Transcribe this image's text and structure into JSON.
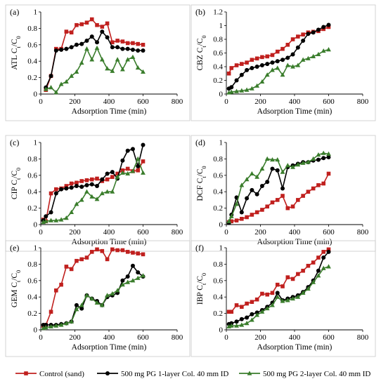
{
  "figure": {
    "legend": [
      {
        "label": "Control (sand)"
      },
      {
        "label": "500 mg PG 1-layer Col. 40 mm ID"
      },
      {
        "label": "500 mg PG 2-layer Col. 40 mm ID"
      }
    ]
  },
  "chart_data": [
    {
      "type": "line",
      "panel_label": "(a)",
      "ylabel": "ATL C/C",
      "xlabel": "Adsorption Time (min)",
      "xlim": [
        0,
        800
      ],
      "ylim": [
        0,
        1
      ],
      "xticks": [
        "0",
        "200",
        "400",
        "600",
        "800"
      ],
      "yticks": [
        "0",
        "0.2",
        "0.4",
        "0.6",
        "0.8",
        "1"
      ],
      "series": [
        {
          "name": "Control (sand)",
          "color": "#c0201e",
          "marker": "square",
          "x": [
            30,
            60,
            90,
            120,
            150,
            180,
            210,
            240,
            270,
            300,
            330,
            360,
            390,
            420,
            450,
            480,
            510,
            540,
            570,
            600
          ],
          "y": [
            0.05,
            0.22,
            0.55,
            0.55,
            0.76,
            0.75,
            0.84,
            0.85,
            0.87,
            0.91,
            0.84,
            0.82,
            0.86,
            0.63,
            0.65,
            0.64,
            0.62,
            0.62,
            0.61,
            0.6
          ]
        },
        {
          "name": "500 mg PG 1-layer Col. 40 mm ID",
          "color": "#000000",
          "marker": "circle",
          "x": [
            30,
            60,
            90,
            120,
            150,
            180,
            210,
            240,
            270,
            300,
            330,
            360,
            390,
            420,
            450,
            480,
            510,
            540,
            570,
            600
          ],
          "y": [
            0.08,
            0.22,
            0.53,
            0.54,
            0.55,
            0.57,
            0.6,
            0.61,
            0.65,
            0.7,
            0.63,
            0.76,
            0.69,
            0.57,
            0.57,
            0.55,
            0.55,
            0.54,
            0.53,
            0.53
          ]
        },
        {
          "name": "500 mg PG 2-layer Col. 40 mm ID",
          "color": "#3a7d2c",
          "marker": "triangle",
          "x": [
            30,
            60,
            90,
            120,
            150,
            180,
            210,
            240,
            270,
            300,
            330,
            360,
            390,
            420,
            450,
            480,
            510,
            540,
            570,
            600
          ],
          "y": [
            0.06,
            0.08,
            0.02,
            0.12,
            0.15,
            0.22,
            0.27,
            0.38,
            0.55,
            0.42,
            0.56,
            0.42,
            0.31,
            0.28,
            0.42,
            0.3,
            0.42,
            0.45,
            0.32,
            0.27
          ]
        }
      ]
    },
    {
      "type": "line",
      "panel_label": "(b)",
      "ylabel": "CBZ C/C",
      "xlabel": "Adsorption Time (min)",
      "xlim": [
        0,
        800
      ],
      "ylim": [
        0,
        1.2
      ],
      "xticks": [
        "0",
        "200",
        "400",
        "600",
        "800"
      ],
      "yticks": [
        "0",
        "0.2",
        "0.4",
        "0.6",
        "0.8",
        "1",
        "1.2"
      ],
      "series": [
        {
          "name": "Control (sand)",
          "color": "#c0201e",
          "marker": "square",
          "x": [
            15,
            30,
            60,
            90,
            120,
            150,
            180,
            210,
            240,
            270,
            300,
            330,
            360,
            390,
            420,
            450,
            480,
            510,
            540,
            570,
            600
          ],
          "y": [
            0.3,
            0.38,
            0.42,
            0.44,
            0.46,
            0.5,
            0.52,
            0.54,
            0.55,
            0.57,
            0.62,
            0.66,
            0.72,
            0.8,
            0.84,
            0.87,
            0.9,
            0.91,
            0.92,
            0.95,
            0.98
          ]
        },
        {
          "name": "500 mg PG 1-layer Col. 40 mm ID",
          "color": "#000000",
          "marker": "circle",
          "x": [
            15,
            30,
            60,
            90,
            120,
            150,
            180,
            210,
            240,
            270,
            300,
            330,
            360,
            390,
            420,
            450,
            480,
            510,
            540,
            570,
            600
          ],
          "y": [
            0.08,
            0.1,
            0.2,
            0.28,
            0.35,
            0.38,
            0.4,
            0.42,
            0.44,
            0.46,
            0.48,
            0.5,
            0.53,
            0.58,
            0.68,
            0.78,
            0.88,
            0.9,
            0.94,
            0.98,
            1.01
          ]
        },
        {
          "name": "500 mg PG 2-layer Col. 40 mm ID",
          "color": "#3a7d2c",
          "marker": "triangle",
          "x": [
            15,
            30,
            60,
            90,
            120,
            150,
            180,
            210,
            240,
            270,
            300,
            330,
            360,
            390,
            420,
            450,
            480,
            510,
            540,
            570,
            600
          ],
          "y": [
            0.02,
            0.03,
            0.04,
            0.05,
            0.06,
            0.08,
            0.12,
            0.18,
            0.28,
            0.35,
            0.38,
            0.28,
            0.42,
            0.4,
            0.42,
            0.5,
            0.52,
            0.55,
            0.58,
            0.63,
            0.65
          ]
        }
      ]
    },
    {
      "type": "line",
      "panel_label": "(c)",
      "ylabel": "CIP C/C",
      "xlabel": "Adsorption Time (min)",
      "xlim": [
        0,
        800
      ],
      "ylim": [
        0,
        1
      ],
      "xticks": [
        "0",
        "200",
        "400",
        "600",
        "800"
      ],
      "yticks": [
        "0",
        "0.2",
        "0.4",
        "0.6",
        "0.8",
        "1"
      ],
      "series": [
        {
          "name": "Control (sand)",
          "color": "#c0201e",
          "marker": "square",
          "x": [
            15,
            30,
            60,
            90,
            120,
            150,
            180,
            210,
            240,
            270,
            300,
            330,
            360,
            390,
            420,
            450,
            480,
            510,
            540,
            570,
            600
          ],
          "y": [
            0.06,
            0.04,
            0.38,
            0.43,
            0.44,
            0.47,
            0.5,
            0.51,
            0.53,
            0.54,
            0.55,
            0.56,
            0.53,
            0.55,
            0.58,
            0.62,
            0.66,
            0.68,
            0.65,
            0.66,
            0.77
          ]
        },
        {
          "name": "500 mg PG 1-layer Col. 40 mm ID",
          "color": "#000000",
          "marker": "circle",
          "x": [
            15,
            30,
            60,
            90,
            120,
            150,
            180,
            210,
            240,
            270,
            300,
            330,
            360,
            390,
            420,
            450,
            480,
            510,
            540,
            570,
            600
          ],
          "y": [
            0.05,
            0.1,
            0.15,
            0.38,
            0.43,
            0.44,
            0.45,
            0.47,
            0.46,
            0.48,
            0.49,
            0.47,
            0.55,
            0.62,
            0.64,
            0.56,
            0.78,
            0.9,
            0.92,
            0.71,
            0.97
          ]
        },
        {
          "name": "500 mg PG 2-layer Col. 40 mm ID",
          "color": "#3a7d2c",
          "marker": "triangle",
          "x": [
            15,
            30,
            60,
            90,
            120,
            150,
            180,
            210,
            240,
            270,
            300,
            330,
            360,
            390,
            420,
            450,
            480,
            510,
            540,
            570,
            600
          ],
          "y": [
            0.03,
            0.04,
            0.05,
            0.05,
            0.06,
            0.08,
            0.15,
            0.25,
            0.3,
            0.4,
            0.34,
            0.31,
            0.38,
            0.4,
            0.4,
            0.58,
            0.63,
            0.62,
            0.65,
            0.8,
            0.63
          ]
        }
      ]
    },
    {
      "type": "line",
      "panel_label": "(d)",
      "ylabel": "DCF C/C",
      "xlabel": "Adsorption Time (min)",
      "xlim": [
        0,
        800
      ],
      "ylim": [
        0,
        1
      ],
      "xticks": [
        "0",
        "200",
        "400",
        "600",
        "800"
      ],
      "yticks": [
        "0",
        "0.2",
        "0.4",
        "0.6",
        "0.8",
        "1"
      ],
      "series": [
        {
          "name": "Control (sand)",
          "color": "#c0201e",
          "marker": "square",
          "x": [
            15,
            30,
            60,
            90,
            120,
            150,
            180,
            210,
            240,
            270,
            300,
            330,
            360,
            390,
            420,
            450,
            480,
            510,
            540,
            570,
            600
          ],
          "y": [
            0.03,
            0.04,
            0.05,
            0.07,
            0.09,
            0.12,
            0.15,
            0.18,
            0.22,
            0.27,
            0.3,
            0.35,
            0.2,
            0.22,
            0.3,
            0.35,
            0.4,
            0.44,
            0.48,
            0.5,
            0.62
          ]
        },
        {
          "name": "500 mg PG 1-layer Col. 40 mm ID",
          "color": "#000000",
          "marker": "circle",
          "x": [
            15,
            30,
            60,
            90,
            120,
            150,
            180,
            210,
            240,
            270,
            300,
            330,
            360,
            390,
            420,
            450,
            480,
            510,
            540,
            570,
            600
          ],
          "y": [
            0.02,
            0.12,
            0.33,
            0.15,
            0.32,
            0.42,
            0.37,
            0.47,
            0.52,
            0.68,
            0.66,
            0.44,
            0.7,
            0.72,
            0.74,
            0.76,
            0.76,
            0.78,
            0.79,
            0.81,
            0.82
          ]
        },
        {
          "name": "500 mg PG 2-layer Col. 40 mm ID",
          "color": "#3a7d2c",
          "marker": "triangle",
          "x": [
            15,
            30,
            60,
            90,
            120,
            150,
            180,
            210,
            240,
            270,
            300,
            330,
            360,
            390,
            420,
            450,
            480,
            510,
            540,
            570,
            600
          ],
          "y": [
            0.04,
            0.1,
            0.25,
            0.48,
            0.55,
            0.62,
            0.58,
            0.68,
            0.8,
            0.79,
            0.79,
            0.64,
            0.72,
            0.7,
            0.73,
            0.75,
            0.76,
            0.8,
            0.85,
            0.87,
            0.86
          ]
        }
      ]
    },
    {
      "type": "line",
      "panel_label": "(e)",
      "ylabel": "GEM C/C",
      "xlabel": "Adsorption Time (min)",
      "xlim": [
        0,
        800
      ],
      "ylim": [
        0,
        1
      ],
      "xticks": [
        "0",
        "200",
        "400",
        "600",
        "800"
      ],
      "yticks": [
        "0",
        "0.2",
        "0.4",
        "0.6",
        "0.8",
        "1"
      ],
      "series": [
        {
          "name": "Control (sand)",
          "color": "#c0201e",
          "marker": "square",
          "x": [
            15,
            30,
            60,
            90,
            120,
            150,
            180,
            210,
            240,
            270,
            300,
            330,
            360,
            390,
            420,
            450,
            480,
            510,
            540,
            570,
            600
          ],
          "y": [
            0.05,
            0.06,
            0.22,
            0.48,
            0.55,
            0.77,
            0.74,
            0.84,
            0.86,
            0.88,
            0.95,
            0.98,
            0.96,
            0.86,
            0.98,
            0.97,
            0.97,
            0.95,
            0.94,
            0.93,
            0.92
          ]
        },
        {
          "name": "500 mg PG 1-layer Col. 40 mm ID",
          "color": "#000000",
          "marker": "circle",
          "x": [
            15,
            30,
            60,
            90,
            120,
            150,
            180,
            210,
            240,
            270,
            300,
            330,
            360,
            390,
            420,
            450,
            480,
            510,
            540,
            570,
            600
          ],
          "y": [
            0.06,
            0.06,
            0.06,
            0.06,
            0.07,
            0.08,
            0.1,
            0.3,
            0.26,
            0.42,
            0.38,
            0.35,
            0.3,
            0.4,
            0.42,
            0.45,
            0.6,
            0.65,
            0.78,
            0.7,
            0.65
          ]
        },
        {
          "name": "500 mg PG 2-layer Col. 40 mm ID",
          "color": "#3a7d2c",
          "marker": "triangle",
          "x": [
            15,
            30,
            60,
            90,
            120,
            150,
            180,
            210,
            240,
            270,
            300,
            330,
            360,
            390,
            420,
            450,
            480,
            510,
            540,
            570,
            600
          ],
          "y": [
            0.02,
            0.03,
            0.04,
            0.05,
            0.06,
            0.08,
            0.1,
            0.25,
            0.3,
            0.42,
            0.38,
            0.33,
            0.3,
            0.42,
            0.44,
            0.48,
            0.55,
            0.58,
            0.6,
            0.63,
            0.66
          ]
        }
      ]
    },
    {
      "type": "line",
      "panel_label": "(f)",
      "ylabel": "IBP C/C",
      "xlabel": "Adsorption Time (min)",
      "xlim": [
        0,
        800
      ],
      "ylim": [
        0,
        1
      ],
      "xticks": [
        "0",
        "200",
        "400",
        "600",
        "800"
      ],
      "yticks": [
        "0",
        "0.2",
        "0.4",
        "0.6",
        "0.8",
        "1"
      ],
      "series": [
        {
          "name": "Control (sand)",
          "color": "#c0201e",
          "marker": "square",
          "x": [
            15,
            30,
            60,
            90,
            120,
            150,
            180,
            210,
            240,
            270,
            300,
            330,
            360,
            390,
            420,
            450,
            480,
            510,
            540,
            570,
            600
          ],
          "y": [
            0.22,
            0.22,
            0.3,
            0.28,
            0.32,
            0.34,
            0.37,
            0.44,
            0.43,
            0.45,
            0.55,
            0.53,
            0.64,
            0.62,
            0.68,
            0.72,
            0.78,
            0.82,
            0.88,
            0.95,
            0.98
          ]
        },
        {
          "name": "500 mg PG 1-layer Col. 40 mm ID",
          "color": "#000000",
          "marker": "circle",
          "x": [
            15,
            30,
            60,
            90,
            120,
            150,
            180,
            210,
            240,
            270,
            300,
            330,
            360,
            390,
            420,
            450,
            480,
            510,
            540,
            570,
            600
          ],
          "y": [
            0.07,
            0.08,
            0.1,
            0.13,
            0.15,
            0.19,
            0.21,
            0.24,
            0.28,
            0.33,
            0.45,
            0.36,
            0.38,
            0.4,
            0.42,
            0.46,
            0.52,
            0.6,
            0.72,
            0.88,
            0.95
          ]
        },
        {
          "name": "500 mg PG 2-layer Col. 40 mm ID",
          "color": "#3a7d2c",
          "marker": "triangle",
          "x": [
            15,
            30,
            60,
            90,
            120,
            150,
            180,
            210,
            240,
            270,
            300,
            330,
            360,
            390,
            420,
            450,
            480,
            510,
            540,
            570,
            600
          ],
          "y": [
            0.04,
            0.05,
            0.05,
            0.06,
            0.08,
            0.12,
            0.18,
            0.22,
            0.26,
            0.3,
            0.4,
            0.35,
            0.36,
            0.38,
            0.4,
            0.45,
            0.5,
            0.58,
            0.66,
            0.75,
            0.77
          ]
        }
      ]
    }
  ]
}
